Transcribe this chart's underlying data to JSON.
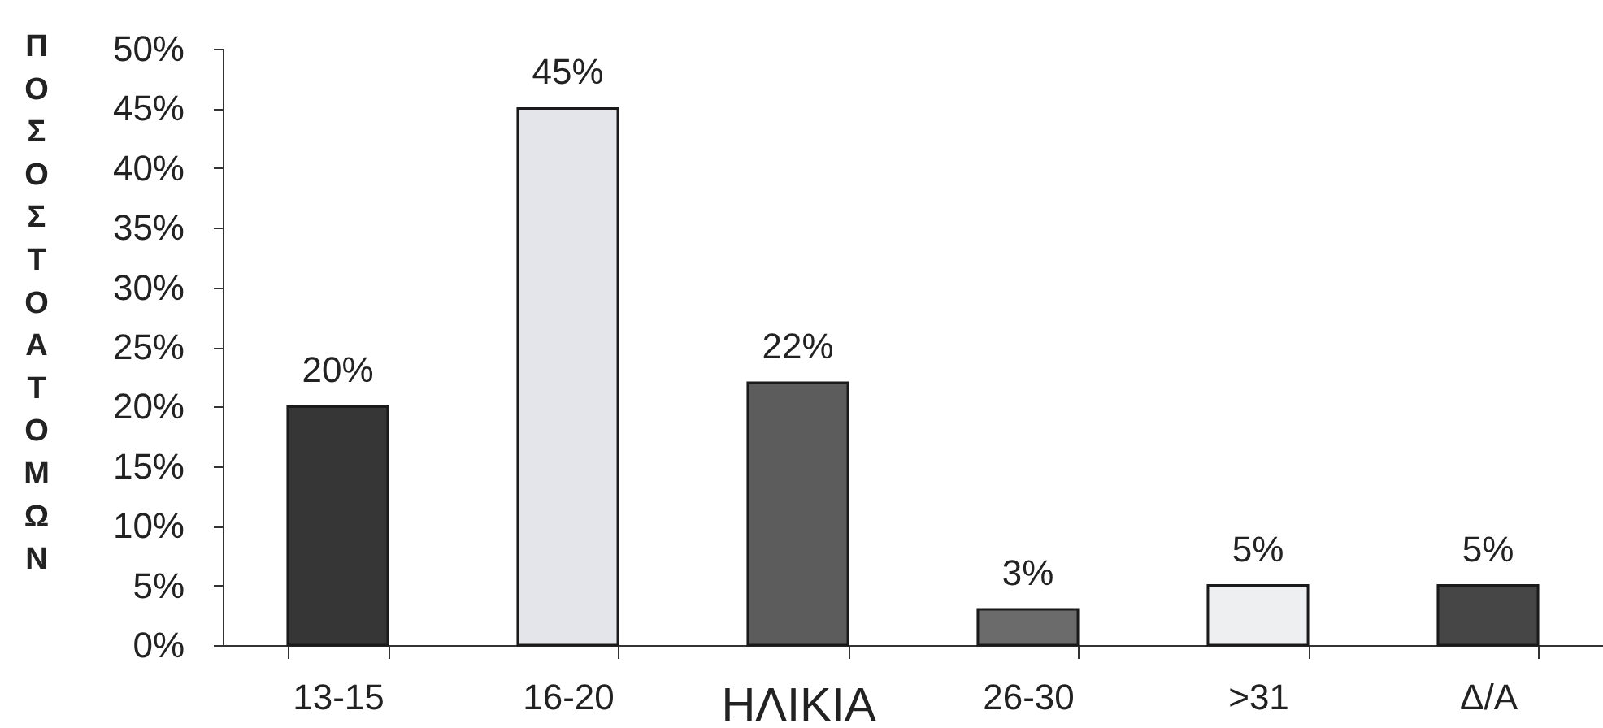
{
  "chart_data": {
    "type": "bar",
    "xlabel": "ΗΛΙΚΙΑ",
    "ylabel": "ΠΟΣΟΣΤΟ ΑΤΟΜΩΝ",
    "categories": [
      "13-15",
      "16-20",
      null,
      "26-30",
      ">31",
      "Δ/Α"
    ],
    "values": [
      20,
      45,
      22,
      3,
      5,
      5
    ],
    "colors": [
      "#363636",
      "#e3e5ea",
      "#5c5c5c",
      "#6b6b6b",
      "#eeeff0",
      "#464646"
    ],
    "value_labels": [
      "20%",
      "45%",
      "22%",
      "3%",
      "5%",
      "5%"
    ],
    "ylim": [
      0,
      50
    ],
    "yticks": [
      {
        "value": 0,
        "label": "0%"
      },
      {
        "value": 5,
        "label": "5%"
      },
      {
        "value": 10,
        "label": "10%"
      },
      {
        "value": 15,
        "label": "15%"
      },
      {
        "value": 20,
        "label": "20%"
      },
      {
        "value": 25,
        "label": "25%"
      },
      {
        "value": 30,
        "label": "30%"
      },
      {
        "value": 35,
        "label": "35%"
      },
      {
        "value": 40,
        "label": "40%"
      },
      {
        "value": 45,
        "label": "45%"
      },
      {
        "value": 50,
        "label": "50%"
      }
    ]
  }
}
